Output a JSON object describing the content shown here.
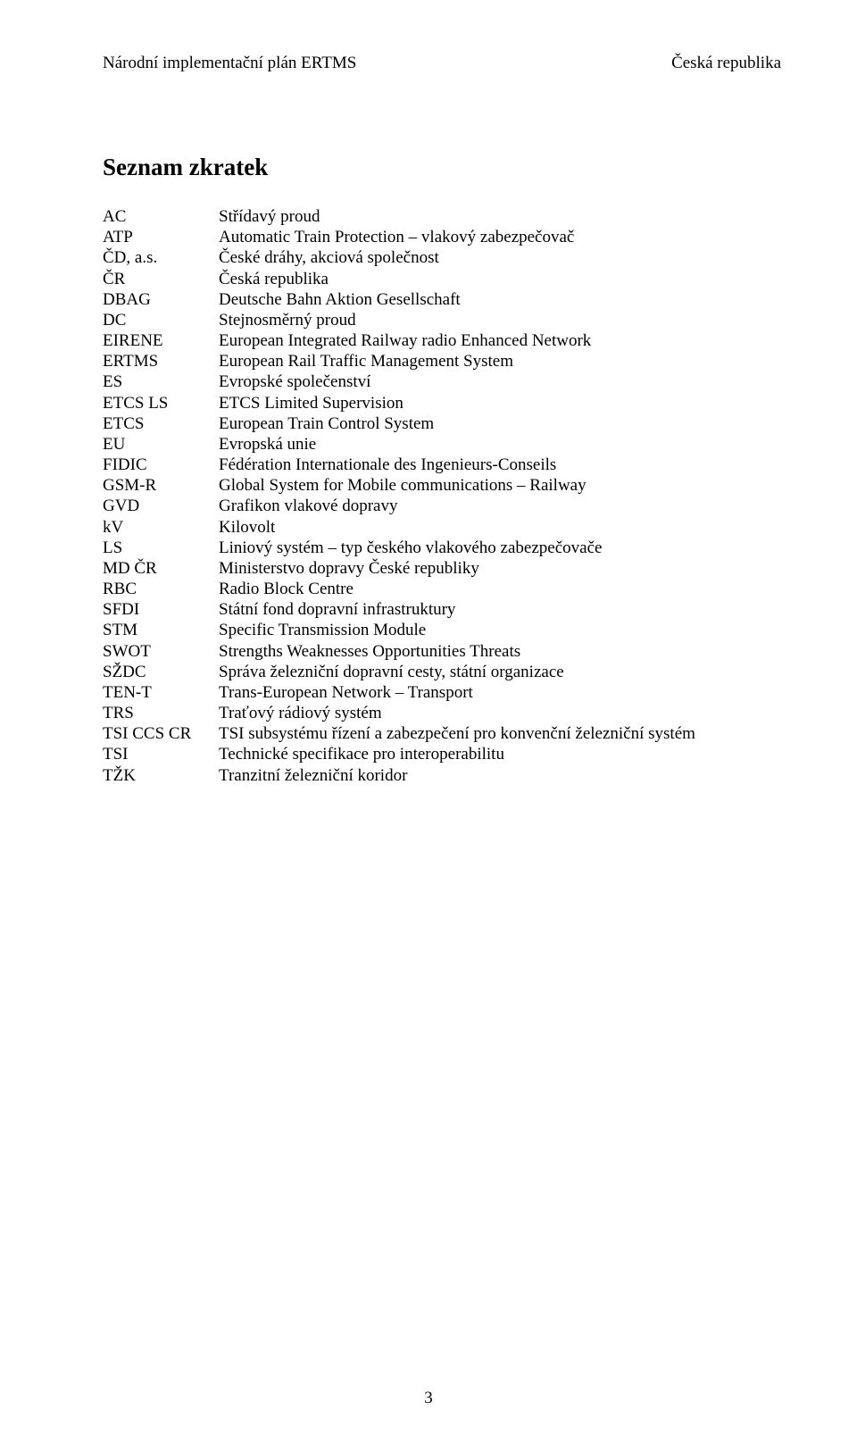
{
  "header": {
    "left": "Národní implementační plán ERTMS",
    "right": "Česká republika"
  },
  "section_title": "Seznam zkratek",
  "abbreviations": [
    {
      "key": "AC",
      "val": "Střídavý proud"
    },
    {
      "key": "ATP",
      "val": "Automatic Train Protection – vlakový zabezpečovač"
    },
    {
      "key": "ČD, a.s.",
      "val": "České dráhy, akciová společnost"
    },
    {
      "key": "ČR",
      "val": "Česká republika"
    },
    {
      "key": "DBAG",
      "val": "Deutsche Bahn Aktion Gesellschaft"
    },
    {
      "key": "DC",
      "val": "Stejnosměrný proud"
    },
    {
      "key": "EIRENE",
      "val": "European Integrated Railway radio Enhanced Network"
    },
    {
      "key": "ERTMS",
      "val": "European Rail Traffic Management System"
    },
    {
      "key": "ES",
      "val": "Evropské společenství"
    },
    {
      "key": "ETCS LS",
      "val": "ETCS Limited Supervision"
    },
    {
      "key": "ETCS",
      "val": "European Train Control System"
    },
    {
      "key": "EU",
      "val": "Evropská unie"
    },
    {
      "key": "FIDIC",
      "val": "Fédération Internationale des Ingenieurs-Conseils"
    },
    {
      "key": "GSM-R",
      "val": "Global System for Mobile communications – Railway"
    },
    {
      "key": "GVD",
      "val": "Grafikon vlakové dopravy"
    },
    {
      "key": "kV",
      "val": "Kilovolt"
    },
    {
      "key": "LS",
      "val": "Liniový systém – typ českého vlakového zabezpečovače"
    },
    {
      "key": "MD ČR",
      "val": "Ministerstvo dopravy České republiky"
    },
    {
      "key": "RBC",
      "val": "Radio Block Centre"
    },
    {
      "key": "SFDI",
      "val": "Státní fond dopravní infrastruktury"
    },
    {
      "key": "STM",
      "val": "Specific Transmission Module"
    },
    {
      "key": "SWOT",
      "val": "Strengths Weaknesses Opportunities Threats"
    },
    {
      "key": "SŽDC",
      "val": "Správa železniční dopravní cesty, státní organizace"
    },
    {
      "key": "TEN-T",
      "val": "Trans-European Network – Transport"
    },
    {
      "key": "TRS",
      "val": "Traťový rádiový systém"
    },
    {
      "key": "TSI CCS CR",
      "val": "TSI subsystému řízení a zabezpečení pro konvenční železniční systém"
    },
    {
      "key": "TSI",
      "val": "Technické specifikace pro interoperabilitu"
    },
    {
      "key": "TŽK",
      "val": "Tranzitní železniční koridor"
    }
  ],
  "page_number": "3"
}
